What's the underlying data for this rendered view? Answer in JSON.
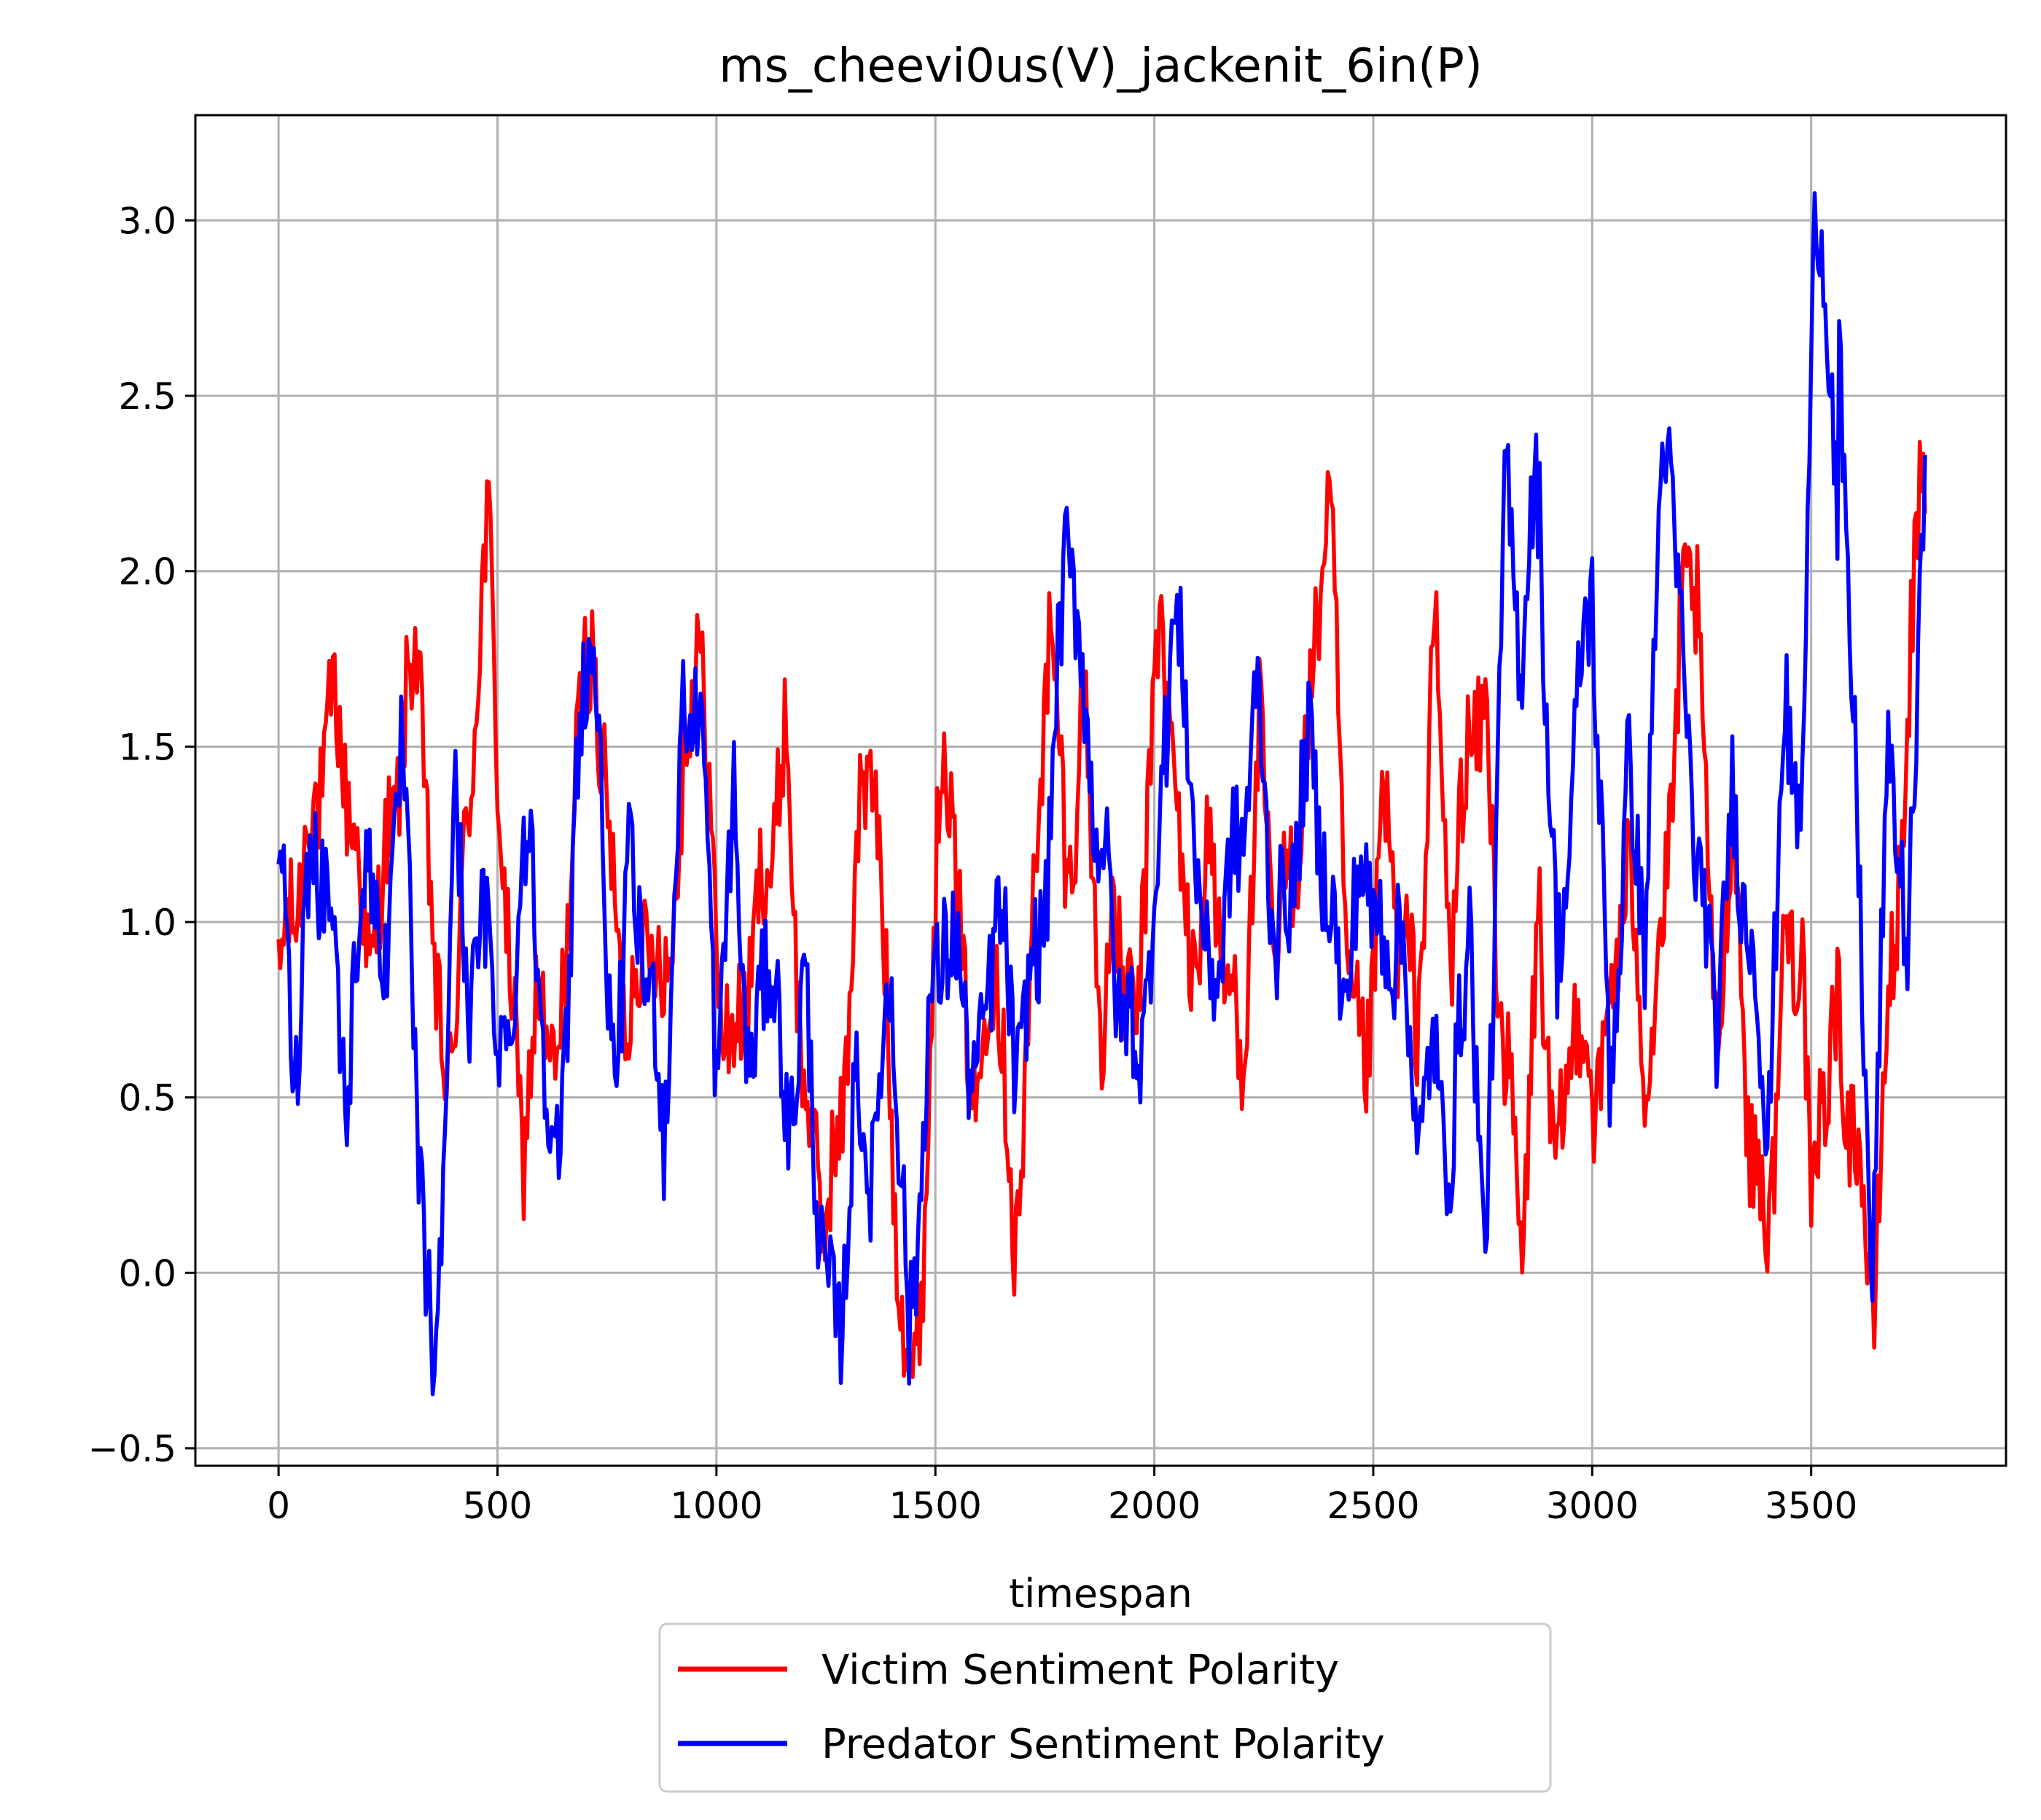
{
  "chart_data": {
    "type": "line",
    "title": "ms_cheevi0us(V)_jackenit_6in(P)",
    "xlabel": "timespan",
    "ylabel": "",
    "xlim": [
      -190,
      3945
    ],
    "ylim": [
      -0.55,
      3.3
    ],
    "xticks": [
      0,
      500,
      1000,
      1500,
      2000,
      2500,
      3000,
      3500
    ],
    "xtick_labels": [
      "0",
      "500",
      "1000",
      "1500",
      "2000",
      "2500",
      "3000",
      "3500"
    ],
    "yticks": [
      -0.5,
      0.0,
      0.5,
      1.0,
      1.5,
      2.0,
      2.5,
      3.0
    ],
    "ytick_labels": [
      "−0.5",
      "0.0",
      "0.5",
      "1.0",
      "1.5",
      "2.0",
      "2.5",
      "3.0"
    ],
    "grid": true,
    "legend_position": "below-center",
    "series": [
      {
        "name": "Victim Sentiment Polarity",
        "color": "#ff0000",
        "x": [
          0,
          40,
          80,
          120,
          160,
          200,
          240,
          280,
          320,
          360,
          400,
          440,
          480,
          520,
          560,
          600,
          640,
          680,
          720,
          760,
          800,
          840,
          880,
          920,
          960,
          1000,
          1040,
          1080,
          1120,
          1160,
          1200,
          1240,
          1280,
          1320,
          1360,
          1400,
          1440,
          1480,
          1520,
          1560,
          1600,
          1640,
          1680,
          1720,
          1760,
          1800,
          1840,
          1880,
          1920,
          1960,
          2000,
          2040,
          2080,
          2120,
          2160,
          2200,
          2240,
          2280,
          2320,
          2360,
          2400,
          2440,
          2480,
          2520,
          2560,
          2600,
          2640,
          2680,
          2720,
          2760,
          2800,
          2840,
          2880,
          2920,
          2960,
          3000,
          3040,
          3080,
          3120,
          3160,
          3200,
          3240,
          3280,
          3320,
          3360,
          3400,
          3440,
          3480,
          3520,
          3560,
          3600,
          3640,
          3680,
          3720,
          3760
        ],
        "y": [
          0.8,
          1.1,
          1.3,
          1.6,
          1.4,
          0.9,
          1.1,
          1.5,
          1.8,
          0.7,
          0.6,
          1.5,
          2.1,
          0.9,
          0.4,
          0.8,
          0.5,
          1.5,
          1.8,
          1.1,
          0.7,
          1.0,
          0.8,
          1.3,
          1.9,
          0.9,
          0.6,
          0.9,
          1.2,
          1.5,
          0.5,
          0.2,
          0.3,
          1.2,
          1.5,
          0.4,
          -0.35,
          0.3,
          1.7,
          0.8,
          0.5,
          1.0,
          0.0,
          0.9,
          1.9,
          1.1,
          1.6,
          0.7,
          1.0,
          0.6,
          1.8,
          1.6,
          0.8,
          1.2,
          0.9,
          0.6,
          1.5,
          0.9,
          1.2,
          1.6,
          2.2,
          0.9,
          0.5,
          1.3,
          1.0,
          0.7,
          1.8,
          0.9,
          1.6,
          1.5,
          0.6,
          0.1,
          1.0,
          0.2,
          0.8,
          0.5,
          0.7,
          1.2,
          0.6,
          0.9,
          1.8,
          2.0,
          0.6,
          1.3,
          0.4,
          0.1,
          0.9,
          1.0,
          0.5,
          0.7,
          0.4,
          -0.1,
          0.8,
          1.5,
          2.3
        ],
        "peaks": [
          [
            480,
            2.15
          ],
          [
            1450,
            -0.37
          ],
          [
            2390,
            2.22
          ],
          [
            3500,
            0.0
          ],
          [
            3640,
            -0.12
          ],
          [
            3750,
            2.32
          ]
        ]
      },
      {
        "name": "Predator Sentiment Polarity",
        "color": "#0000ff",
        "x": [
          0,
          40,
          80,
          120,
          160,
          200,
          240,
          280,
          320,
          360,
          400,
          440,
          480,
          520,
          560,
          600,
          640,
          680,
          720,
          760,
          800,
          840,
          880,
          920,
          960,
          1000,
          1040,
          1080,
          1120,
          1160,
          1200,
          1240,
          1280,
          1320,
          1360,
          1400,
          1440,
          1480,
          1520,
          1560,
          1600,
          1640,
          1680,
          1720,
          1760,
          1800,
          1840,
          1880,
          1920,
          1960,
          2000,
          2040,
          2080,
          2120,
          2160,
          2200,
          2240,
          2280,
          2320,
          2360,
          2400,
          2440,
          2480,
          2520,
          2560,
          2600,
          2640,
          2680,
          2720,
          2760,
          2800,
          2840,
          2880,
          2920,
          2960,
          3000,
          3040,
          3080,
          3120,
          3160,
          3200,
          3240,
          3280,
          3320,
          3360,
          3400,
          3440,
          3480,
          3520,
          3560,
          3600,
          3640,
          3680,
          3720,
          3760
        ],
        "y": [
          1.2,
          0.6,
          1.3,
          1.0,
          0.5,
          1.3,
          0.8,
          1.5,
          0.4,
          -0.3,
          1.3,
          0.8,
          1.0,
          0.5,
          1.3,
          0.8,
          0.2,
          1.4,
          1.9,
          0.5,
          1.1,
          0.9,
          0.4,
          1.5,
          1.7,
          0.6,
          1.3,
          0.5,
          1.0,
          0.4,
          0.8,
          0.1,
          -0.15,
          0.5,
          0.3,
          0.9,
          -0.25,
          0.6,
          1.0,
          0.8,
          0.5,
          1.1,
          0.6,
          0.8,
          1.2,
          2.15,
          1.6,
          1.2,
          0.8,
          0.6,
          1.0,
          1.9,
          1.5,
          0.8,
          1.0,
          1.3,
          1.6,
          0.9,
          1.2,
          1.5,
          1.0,
          0.8,
          1.2,
          0.9,
          1.0,
          0.4,
          0.6,
          0.3,
          1.1,
          0.2,
          2.2,
          1.8,
          2.2,
          0.8,
          1.5,
          2.0,
          0.5,
          1.4,
          1.0,
          2.3,
          1.8,
          1.2,
          0.7,
          1.3,
          1.0,
          0.4,
          1.6,
          1.3,
          3.1,
          2.1,
          1.4,
          0.0,
          1.6,
          0.8,
          2.4
        ],
        "peaks": [
          [
            350,
            -0.32
          ],
          [
            1260,
            -0.15
          ],
          [
            1800,
            2.18
          ],
          [
            2750,
            0.0
          ],
          [
            2870,
            2.23
          ],
          [
            3170,
            2.5
          ],
          [
            3510,
            3.12
          ],
          [
            3560,
            2.82
          ],
          [
            3760,
            2.39
          ]
        ]
      }
    ]
  }
}
